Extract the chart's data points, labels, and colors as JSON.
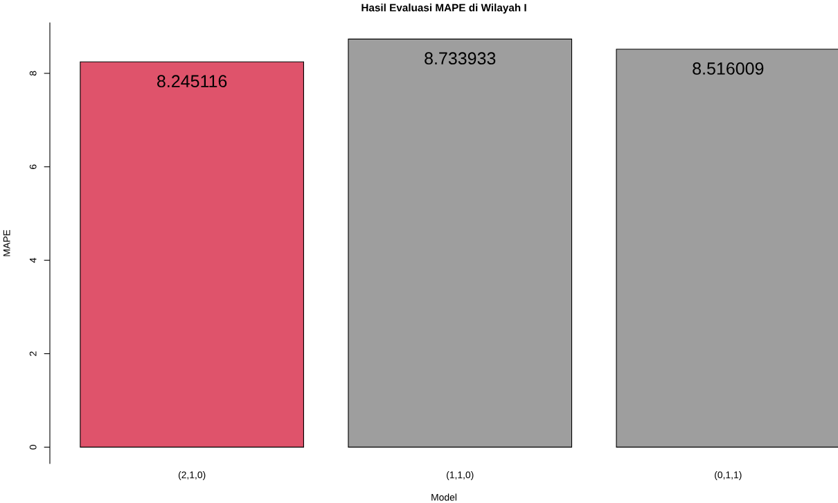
{
  "chart_data": {
    "type": "bar",
    "title": "Hasil Evaluasi MAPE di Wilayah I",
    "xlabel": "Model",
    "ylabel": "MAPE",
    "categories": [
      "(2,1,0)",
      "(1,1,0)",
      "(0,1,1)"
    ],
    "values": [
      8.245116,
      8.733933,
      8.516009
    ],
    "colors": [
      "#df536b",
      "#9e9e9e",
      "#9e9e9e"
    ],
    "ylim": [
      -0.35,
      9.08
    ],
    "yticks": [
      0,
      2,
      4,
      6,
      8
    ],
    "grid": false,
    "legend": false,
    "data_labels": true
  }
}
